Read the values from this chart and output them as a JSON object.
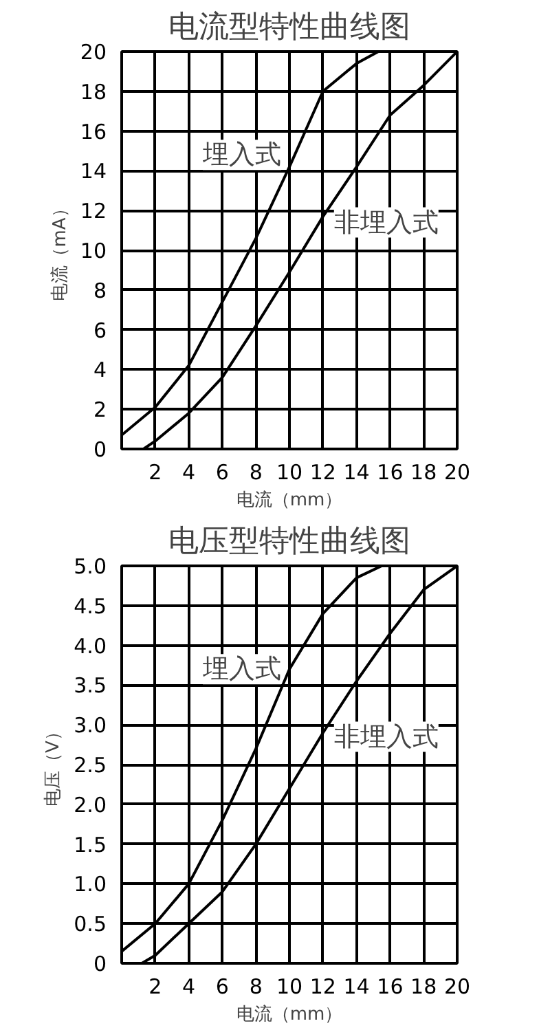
{
  "chart_data": [
    {
      "type": "line",
      "title": "电流型特性曲线图",
      "xlabel": "电流（mm）",
      "ylabel": "电流（mA）",
      "xlim": [
        0,
        20
      ],
      "xticks": [
        2,
        4,
        6,
        8,
        10,
        12,
        14,
        16,
        18,
        20
      ],
      "ylim": [
        0,
        20
      ],
      "yticks": [
        0,
        2,
        4,
        6,
        8,
        10,
        12,
        14,
        16,
        18,
        20
      ],
      "grid": true,
      "marker": "none",
      "line_style": "solid",
      "series": [
        {
          "name": "埋入式",
          "color": "#000000",
          "x": [
            0,
            2,
            4,
            6,
            8,
            10,
            12,
            14,
            15.3
          ],
          "values": [
            0.7,
            2.1,
            4.2,
            7.4,
            10.6,
            14.2,
            18,
            19.4,
            20
          ]
        },
        {
          "name": "非埋入式",
          "color": "#000000",
          "x": [
            1.3,
            2,
            4,
            6,
            8,
            10,
            12,
            14,
            16,
            18,
            20
          ],
          "values": [
            0,
            0.4,
            1.8,
            3.6,
            6.2,
            8.9,
            11.7,
            14.2,
            16.8,
            18.3,
            20
          ]
        }
      ]
    },
    {
      "type": "line",
      "title": "电压型特性曲线图",
      "xlabel": "电流（mm）",
      "ylabel": "电压（V）",
      "xlim": [
        0,
        20
      ],
      "xticks": [
        2,
        4,
        6,
        8,
        10,
        12,
        14,
        16,
        18,
        20
      ],
      "ylim": [
        0,
        5
      ],
      "yticks": [
        0,
        0.5,
        {
          "value": 1,
          "label": "1.0"
        },
        1.5,
        {
          "value": 2,
          "label": "2.0"
        },
        2.5,
        {
          "value": 3,
          "label": "3.0"
        },
        3.5,
        {
          "value": 4,
          "label": "4.0"
        },
        4.5,
        {
          "value": 5,
          "label": "5.0"
        }
      ],
      "grid": true,
      "marker": "none",
      "line_style": "solid",
      "series": [
        {
          "name": "埋入式",
          "color": "#000000",
          "x": [
            0,
            2,
            4,
            6,
            8,
            10,
            12,
            14,
            15.5
          ],
          "values": [
            0.15,
            0.5,
            1.0,
            1.8,
            2.7,
            3.7,
            4.4,
            4.85,
            5
          ]
        },
        {
          "name": "非埋入式",
          "color": "#000000",
          "x": [
            1.2,
            2,
            4,
            6,
            8,
            10,
            12,
            14,
            16,
            18,
            20
          ],
          "values": [
            0,
            0.1,
            0.5,
            0.9,
            1.5,
            2.2,
            2.9,
            3.55,
            4.15,
            4.7,
            5
          ]
        }
      ]
    }
  ]
}
